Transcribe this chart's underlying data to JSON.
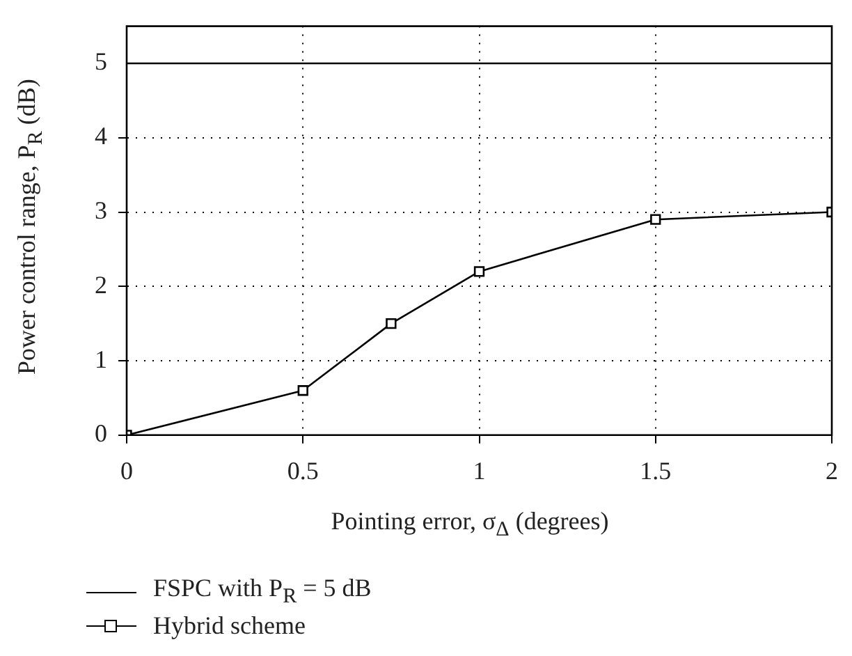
{
  "chart_data": {
    "type": "line",
    "xlabel": "Pointing error, σ$_{Δ}$ (degrees)",
    "ylabel": "Power control range, P$_{R}$ (dB)",
    "xlim": [
      0,
      2
    ],
    "xticks": [
      0,
      0.5,
      1,
      1.5,
      2
    ],
    "ylim": [
      0,
      5.5
    ],
    "yticks": [
      0,
      1,
      2,
      3,
      4,
      5
    ],
    "grid": true,
    "legend": "bottom",
    "series": [
      {
        "name": "FSPC with P$_{R}$ = 5 dB",
        "color": "#000000",
        "x": [
          0,
          2
        ],
        "values": [
          5,
          5
        ],
        "marker": "none"
      },
      {
        "name": "Hybrid scheme",
        "color": "#000000",
        "x": [
          0,
          0.5,
          0.75,
          1,
          1.5,
          2
        ],
        "values": [
          0,
          0.6,
          1.5,
          2.2,
          2.9,
          3.0
        ],
        "marker": "square"
      }
    ]
  }
}
